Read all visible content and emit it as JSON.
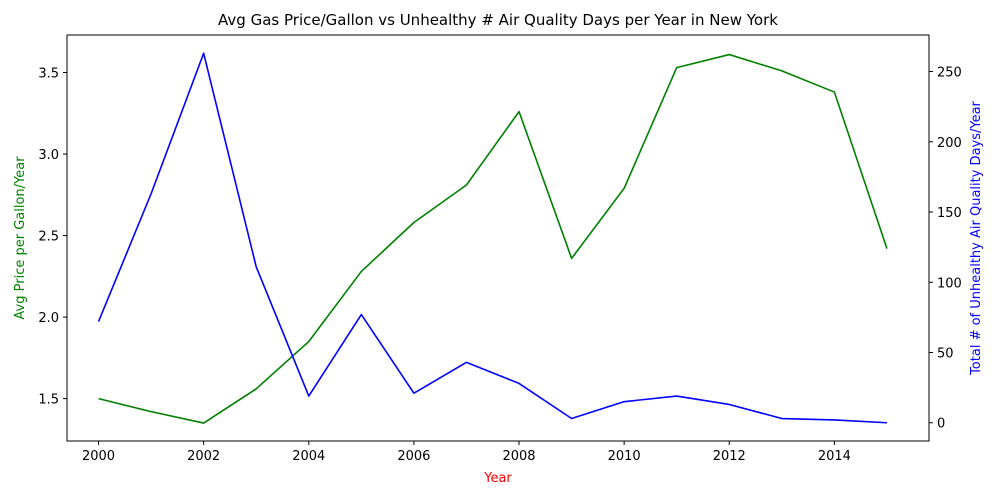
{
  "chart_data": {
    "type": "line",
    "title": "Avg Gas Price/Gallon vs Unhealthy # Air Quality Days per Year in New York",
    "xlabel": "Year",
    "xlabel_color": "#ff0000",
    "x": [
      2000,
      2001,
      2002,
      2003,
      2004,
      2005,
      2006,
      2007,
      2008,
      2009,
      2010,
      2011,
      2012,
      2013,
      2014,
      2015
    ],
    "xlim": [
      1999.4,
      2015.8
    ],
    "x_ticks": [
      2000,
      2002,
      2004,
      2006,
      2008,
      2010,
      2012,
      2014
    ],
    "x_tick_labels": [
      "2000",
      "2002",
      "2004",
      "2006",
      "2008",
      "2010",
      "2012",
      "2014"
    ],
    "grid": false,
    "legend": "none",
    "left_axis": {
      "label": "Avg Price per Gallon/Year",
      "color": "#008000",
      "ylim": [
        1.24,
        3.73
      ],
      "ticks": [
        1.5,
        2.0,
        2.5,
        3.0,
        3.5
      ],
      "tick_labels": [
        "1.5",
        "2.0",
        "2.5",
        "3.0",
        "3.5"
      ]
    },
    "right_axis": {
      "label": "Total # of Unhealthy Air Quality Days/Year",
      "color": "#0000ff",
      "ylim": [
        -13,
        276
      ],
      "ticks": [
        0,
        50,
        100,
        150,
        200,
        250
      ],
      "tick_labels": [
        "0",
        "50",
        "100",
        "150",
        "200",
        "250"
      ]
    },
    "series": [
      {
        "axis": "left",
        "color": "#008000",
        "values": [
          1.5,
          1.42,
          1.35,
          1.56,
          1.85,
          2.28,
          2.58,
          2.81,
          3.26,
          2.36,
          2.79,
          3.53,
          3.61,
          3.51,
          3.38,
          2.42
        ]
      },
      {
        "axis": "right",
        "color": "#0000ff",
        "values": [
          72,
          163,
          263,
          111,
          19,
          77,
          21,
          43,
          28,
          3,
          15,
          19,
          13,
          3,
          2,
          0
        ]
      }
    ]
  }
}
